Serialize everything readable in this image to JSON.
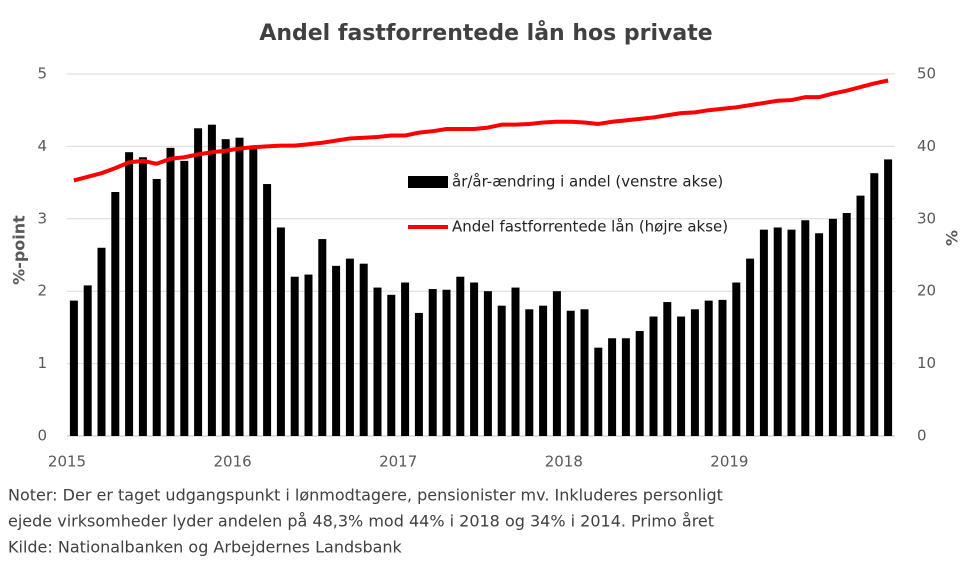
{
  "chart_data": {
    "type": "bar_line",
    "title": "Andel fastforrentede lån hos private",
    "ylabel": "%-point",
    "y2label": "%",
    "categories": [
      "2015",
      null,
      null,
      null,
      null,
      null,
      null,
      null,
      null,
      null,
      null,
      null,
      "2016",
      null,
      null,
      null,
      null,
      null,
      null,
      null,
      null,
      null,
      null,
      null,
      "2017",
      null,
      null,
      null,
      null,
      null,
      null,
      null,
      null,
      null,
      null,
      null,
      "2018",
      null,
      null,
      null,
      null,
      null,
      null,
      null,
      null,
      null,
      null,
      null,
      "2019",
      null,
      null,
      null,
      null,
      null,
      null,
      null,
      null,
      null,
      null,
      null
    ],
    "series": [
      {
        "name": "år/år-ændring i andel (venstre akse)",
        "type": "bar",
        "color": "#000000",
        "axis": "y",
        "values": [
          1.87,
          2.08,
          2.6,
          3.37,
          3.92,
          3.85,
          3.55,
          3.98,
          3.8,
          4.25,
          4.3,
          4.1,
          4.12,
          4.0,
          3.48,
          2.88,
          2.2,
          2.23,
          2.72,
          2.35,
          2.45,
          2.38,
          2.05,
          1.95,
          2.12,
          1.7,
          2.03,
          2.02,
          2.2,
          2.12,
          2.0,
          1.8,
          2.05,
          1.75,
          1.8,
          2.0,
          1.73,
          1.75,
          1.22,
          1.35,
          1.35,
          1.45,
          1.65,
          1.85,
          1.65,
          1.75,
          1.87,
          1.88,
          2.12,
          2.45,
          2.85,
          2.88,
          2.85,
          2.98,
          2.8,
          3.0,
          3.08,
          3.32,
          3.63,
          3.82
        ]
      },
      {
        "name": "Andel fastforrentede lån (højre akse)",
        "type": "line",
        "color": "#ff0000",
        "axis": "y2",
        "values": [
          35.3,
          35.8,
          36.3,
          37.0,
          37.8,
          38.0,
          37.6,
          38.3,
          38.5,
          38.9,
          39.2,
          39.4,
          39.7,
          39.9,
          40.0,
          40.1,
          40.1,
          40.3,
          40.5,
          40.8,
          41.1,
          41.2,
          41.3,
          41.5,
          41.5,
          41.9,
          42.1,
          42.4,
          42.4,
          42.4,
          42.6,
          43.0,
          43.0,
          43.1,
          43.3,
          43.4,
          43.4,
          43.3,
          43.1,
          43.4,
          43.6,
          43.8,
          44.0,
          44.3,
          44.6,
          44.7,
          45.0,
          45.2,
          45.4,
          45.7,
          46.0,
          46.3,
          46.4,
          46.8,
          46.8,
          47.3,
          47.7,
          48.2,
          48.7,
          49.1
        ]
      }
    ],
    "ylim": [
      0,
      5
    ],
    "yticks": [
      0,
      1,
      2,
      3,
      4,
      5
    ],
    "y2lim": [
      0,
      50
    ],
    "y2ticks": [
      0,
      10,
      20,
      30,
      40,
      50
    ],
    "grid": true,
    "notes": [
      "Noter: Der er taget udgangspunkt i lønmodtagere, pensionister mv. Inkluderes personligt",
      "ejede virksomheder lyder andelen på 48,3% mod 44% i 2018 og 34% i 2014. Primo året",
      "Kilde: Nationalbanken og Arbejdernes Landsbank"
    ]
  }
}
